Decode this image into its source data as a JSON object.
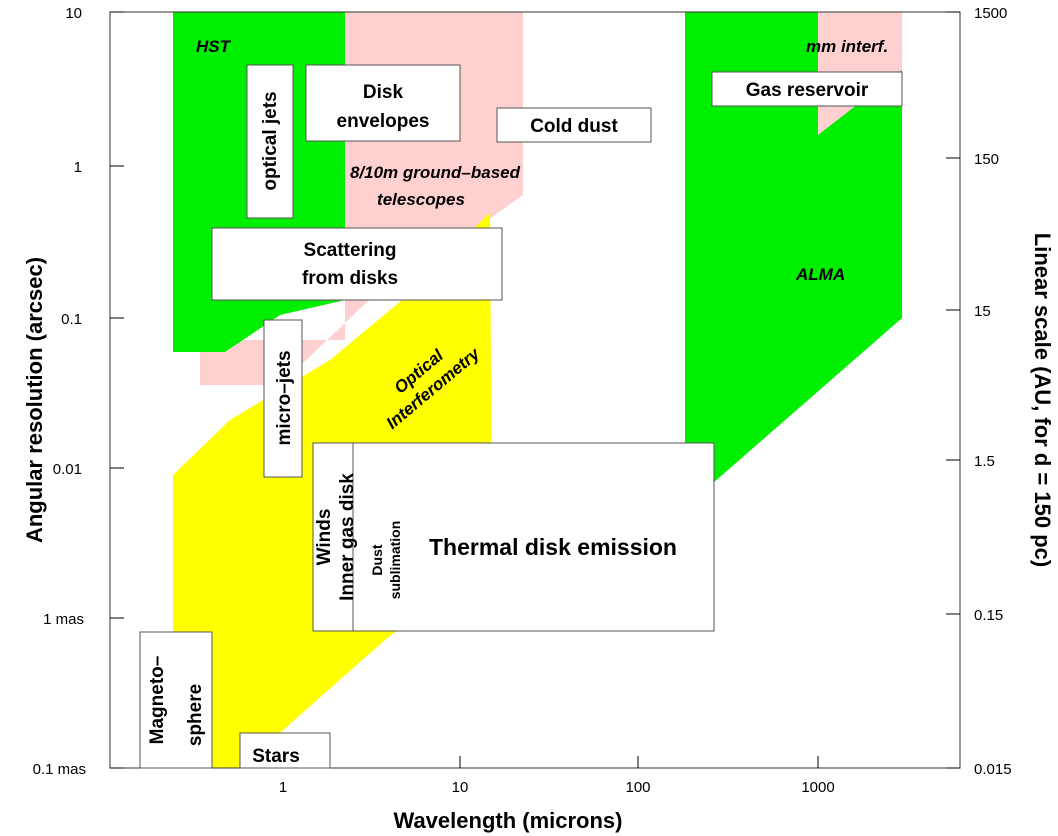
{
  "axes": {
    "xlabel": "Wavelength (microns)",
    "ylabel": "Angular resolution (arcsec)",
    "y2label": "Linear scale (AU, for d = 150 pc)",
    "xticks": [
      "1",
      "10",
      "100",
      "1000"
    ],
    "yticks": [
      "10",
      "1",
      "0.1",
      "0.01",
      "1 mas",
      "0.1 mas"
    ],
    "y2ticks": [
      "1500",
      "150",
      "15",
      "1.5",
      "0.15",
      "0.015"
    ]
  },
  "regions": {
    "hst": "HST",
    "ground": "8/10m ground–based telescopes",
    "ground_line1": "8/10m ground–based",
    "ground_line2": "telescopes",
    "optical_interf_line1": "Optical",
    "optical_interf_line2": "Interferometry",
    "alma": "ALMA",
    "mm_interf": "mm interf."
  },
  "boxes": {
    "optical_jets": "optical jets",
    "disk_envelopes_line1": "Disk",
    "disk_envelopes_line2": "envelopes",
    "cold_dust": "Cold dust",
    "gas_reservoir": "Gas reservoir",
    "scattering_line1": "Scattering",
    "scattering_line2": "from disks",
    "micro_jets": "micro–jets",
    "winds": "Winds",
    "inner_gas_disk": "Inner gas disk",
    "dust_sublimation_line1": "Dust",
    "dust_sublimation_line2": "sublimation",
    "thermal": "Thermal disk emission",
    "magnetosphere_line1": "Magneto–",
    "magnetosphere_line2": "sphere",
    "stars": "Stars"
  },
  "colors": {
    "green": "#00ee00",
    "pink": "#ffd0d0",
    "yellow": "#ffff00"
  }
}
